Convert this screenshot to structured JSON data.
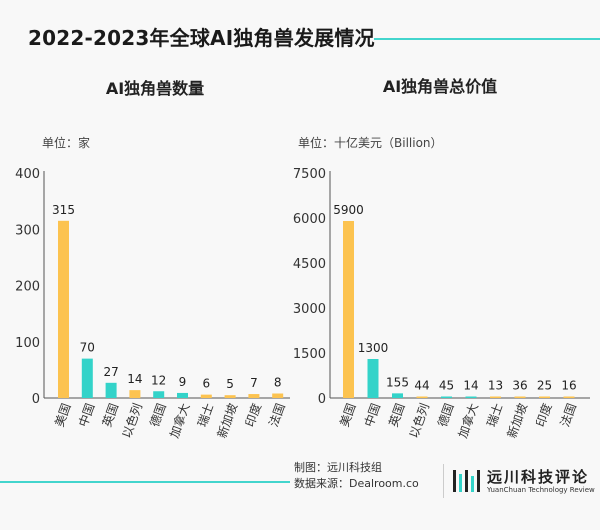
{
  "title": "2022-2023年全球AI独角兽发展情况",
  "colors": {
    "yellow": "#fcc350",
    "teal": "#33d3c9",
    "accent": "#43d5cd",
    "axis": "#555555"
  },
  "footer": {
    "made_by": "制图：远川科技组",
    "source": "数据来源：Dealroom.co"
  },
  "brand": {
    "name": "远川科技评论",
    "en": "YuanChuan Technology Review"
  },
  "chart_data": [
    {
      "type": "bar",
      "title": "AI独角兽数量",
      "unit": "单位：家",
      "categories": [
        "美国",
        "中国",
        "英国",
        "以色列",
        "德国",
        "加拿大",
        "瑞士",
        "新加坡",
        "印度",
        "法国"
      ],
      "values": [
        315,
        70,
        27,
        14,
        12,
        9,
        6,
        5,
        7,
        8
      ],
      "value_labels": [
        "315",
        "70",
        "27",
        "14",
        "12",
        "9",
        "6",
        "5",
        "7",
        "8"
      ],
      "bar_colors": [
        "#fcc350",
        "#33d3c9",
        "#33d3c9",
        "#fcc350",
        "#33d3c9",
        "#33d3c9",
        "#fcc350",
        "#fcc350",
        "#fcc350",
        "#fcc350"
      ],
      "yticks": [
        0,
        100,
        200,
        300,
        400
      ],
      "ytick_labels": [
        "0",
        "100",
        "200",
        "300",
        "400"
      ],
      "ylim": [
        0,
        400
      ]
    },
    {
      "type": "bar",
      "title": "AI独角兽总价值",
      "unit": "单位：十亿美元（Billion）",
      "categories": [
        "美国",
        "中国",
        "英国",
        "以色列",
        "德国",
        "加拿大",
        "瑞士",
        "新加坡",
        "印度",
        "法国"
      ],
      "values": [
        5900,
        1300,
        155,
        44,
        45,
        14,
        13,
        36,
        25,
        16
      ],
      "value_labels": [
        "5900",
        "1300",
        "155",
        "44",
        "45",
        "14",
        "13",
        "36",
        "25",
        "16"
      ],
      "bar_colors": [
        "#fcc350",
        "#33d3c9",
        "#33d3c9",
        "#fcc350",
        "#33d3c9",
        "#33d3c9",
        "#fcc350",
        "#fcc350",
        "#fcc350",
        "#fcc350"
      ],
      "yticks": [
        0,
        1500,
        3000,
        4500,
        6000,
        7500
      ],
      "ytick_labels": [
        "0",
        "1500",
        "3000",
        "4500",
        "6000",
        "7500"
      ],
      "ylim": [
        0,
        7500
      ]
    }
  ]
}
